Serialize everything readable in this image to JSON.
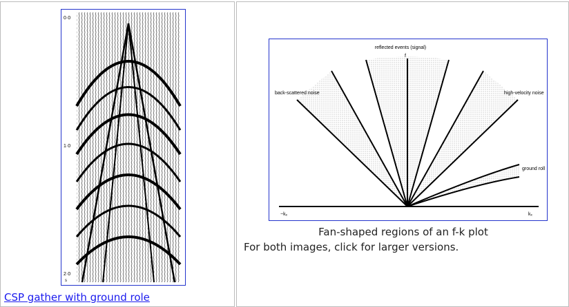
{
  "left_figure": {
    "link": "CSP gather with ground role",
    "axis_labels": [
      "0·0",
      "1·0",
      "2·0"
    ],
    "unit": "s"
  },
  "right_figure": {
    "caption": "Fan-shaped regions of an f-k plot",
    "labels": {
      "signal": "reflected events (signal)",
      "f": "f",
      "back": "back-scattered noise",
      "high": "high-velocity noise",
      "ground": "ground roll",
      "kneg": "−kₓ",
      "kpos": "kₓ"
    }
  },
  "note": "For both images, click for larger versions."
}
